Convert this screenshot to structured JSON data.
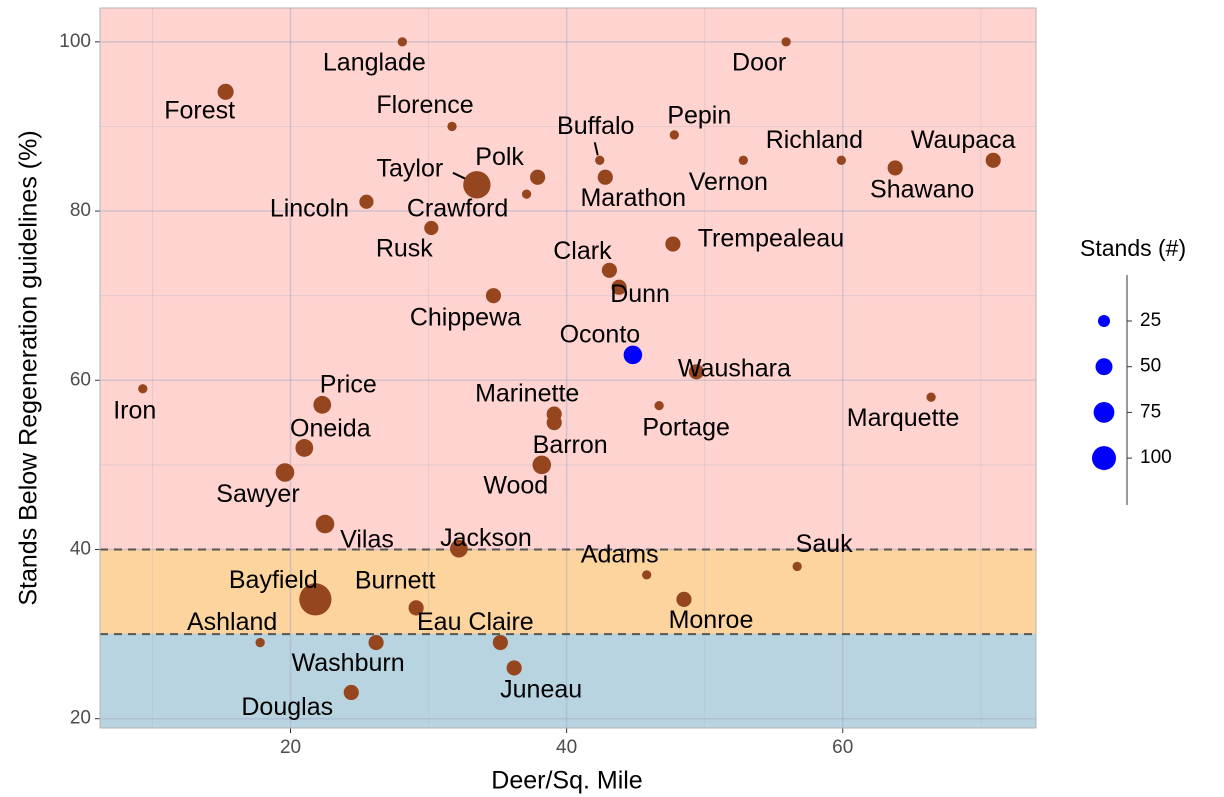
{
  "chart_data": {
    "type": "scatter",
    "xlabel": "Deer/Sq. Mile",
    "ylabel": "Stands Below Regeneration guidelines (%)",
    "xlim": [
      6.2,
      74
    ],
    "ylim": [
      18.9,
      104
    ],
    "xticks": [
      20,
      40,
      60
    ],
    "yticks": [
      20,
      40,
      60,
      80,
      100
    ],
    "grid": true,
    "thresholds": [
      30,
      40
    ],
    "band_colors": [
      "#b8d4e1",
      "#fdd49d",
      "#ffd4d0"
    ],
    "size_legend": {
      "title": "Stands (#)",
      "ticks": [
        25,
        50,
        75,
        100
      ]
    },
    "labels": [
      "Langlade",
      "Door",
      "Forest",
      "Florence",
      "Buffalo",
      "Pepin",
      "Richland",
      "Vernon",
      "Waupaca",
      "Shawano",
      "Taylor",
      "Polk",
      "Marathon",
      "Crawford",
      "Lincoln",
      "Rusk",
      "Trempealeau",
      "Clark",
      "Dunn",
      "Chippewa",
      "Oconto",
      "Waushara",
      "Iron",
      "Price",
      "Marinette",
      "Portage",
      "Marquette",
      "Oneida",
      "Barron",
      "Wood",
      "Sawyer",
      "Vilas",
      "Jackson",
      "Adams",
      "Sauk",
      "Bayfield",
      "Burnett",
      "Monroe",
      "Ashland",
      "Washburn",
      "Eau Claire",
      "Juneau",
      "Douglas"
    ],
    "x": [
      28.1,
      55.9,
      15.3,
      31.7,
      42.4,
      47.8,
      59.9,
      52.8,
      70.9,
      63.8,
      33.5,
      37.9,
      42.8,
      37.1,
      25.5,
      30.2,
      47.7,
      43.1,
      43.8,
      34.7,
      44.8,
      49.4,
      9.3,
      22.3,
      39.1,
      46.7,
      66.4,
      21,
      39.1,
      38.2,
      19.6,
      22.5,
      32.2,
      45.8,
      56.7,
      21.8,
      29.1,
      48.5,
      17.8,
      26.2,
      35.2,
      36.2,
      24.4
    ],
    "y": [
      100,
      100,
      94.1,
      90,
      86,
      89,
      86,
      86,
      86,
      85.1,
      83.1,
      84,
      84,
      82,
      81.1,
      78,
      76.1,
      73,
      71,
      70,
      63,
      61,
      59,
      57.1,
      56,
      57,
      58,
      52,
      55,
      50,
      49.1,
      43,
      40.1,
      37,
      38,
      34.1,
      33.1,
      34.1,
      29,
      29,
      29,
      26,
      23.1
    ],
    "sizes": [
      15,
      15,
      45,
      15,
      15,
      15,
      15,
      15,
      40,
      40,
      130,
      40,
      40,
      15,
      35,
      35,
      40,
      40,
      40,
      40,
      60,
      40,
      15,
      55,
      40,
      15,
      15,
      55,
      40,
      60,
      60,
      60,
      55,
      15,
      15,
      180,
      40,
      40,
      15,
      40,
      40,
      40,
      40
    ],
    "colors": [
      "#96461f",
      "#96461f",
      "#96461f",
      "#96461f",
      "#96461f",
      "#96461f",
      "#96461f",
      "#96461f",
      "#96461f",
      "#96461f",
      "#96461f",
      "#96461f",
      "#96461f",
      "#96461f",
      "#96461f",
      "#96461f",
      "#96461f",
      "#96461f",
      "#96461f",
      "#96461f",
      "#0000ff",
      "#96461f",
      "#96461f",
      "#96461f",
      "#96461f",
      "#96461f",
      "#96461f",
      "#96461f",
      "#96461f",
      "#96461f",
      "#96461f",
      "#96461f",
      "#96461f",
      "#96461f",
      "#96461f",
      "#96461f",
      "#96461f",
      "#96461f",
      "#96461f",
      "#96461f",
      "#96461f",
      "#96461f",
      "#96461f"
    ],
    "legend_color": "#0000ff"
  }
}
